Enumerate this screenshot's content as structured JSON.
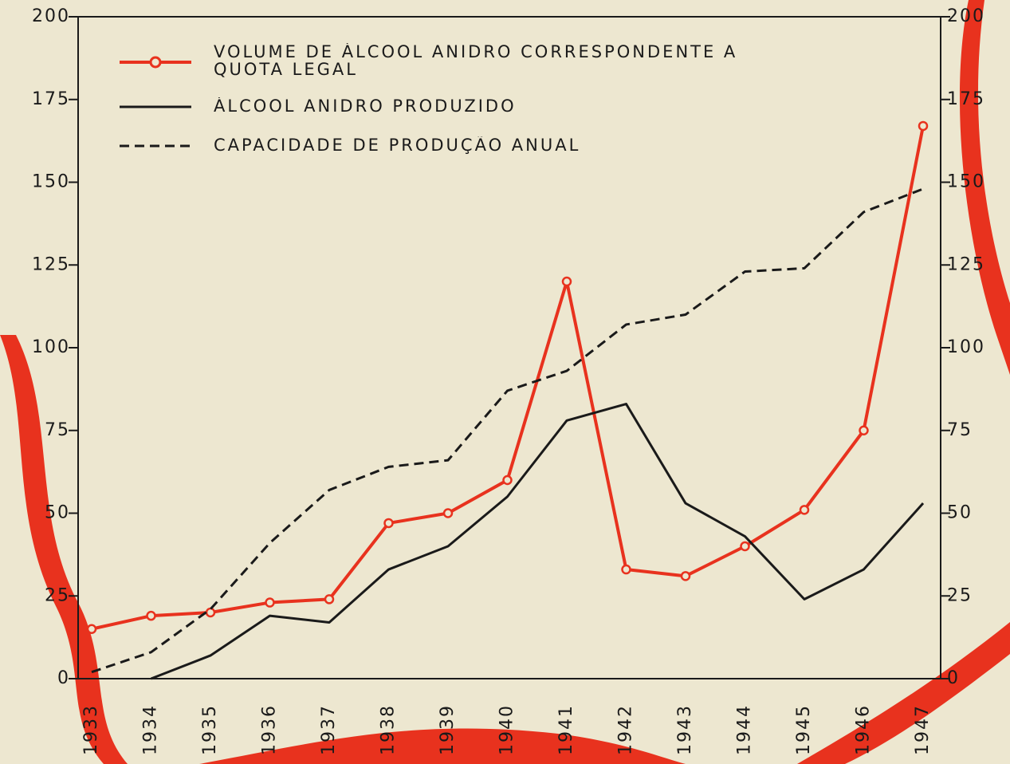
{
  "chart_data": {
    "type": "line",
    "categories": [
      "1933",
      "1934",
      "1935",
      "1936",
      "1937",
      "1938",
      "1939",
      "1940",
      "1941",
      "1942",
      "1943",
      "1944",
      "1945",
      "1946",
      "1947"
    ],
    "series": [
      {
        "name": "VOLUME DE ÁLCOOL ANIDRO CORRESPONDENTE A QUOTA LEGAL",
        "color": "#e8321e",
        "style": "solid-markers",
        "values": [
          15,
          19,
          20,
          23,
          24,
          47,
          50,
          60,
          120,
          33,
          31,
          40,
          51,
          75,
          167
        ]
      },
      {
        "name": "ÁLCOOL ANIDRO PRODUZIDO",
        "color": "#1a1a1a",
        "style": "solid",
        "values": [
          null,
          0,
          7,
          19,
          17,
          33,
          40,
          55,
          78,
          83,
          53,
          43,
          24,
          33,
          53
        ]
      },
      {
        "name": "CAPACIDADE DE PRODUÇÃO ANUAL",
        "color": "#1a1a1a",
        "style": "dashed",
        "values": [
          2,
          8,
          21,
          41,
          57,
          64,
          66,
          87,
          93,
          107,
          110,
          123,
          124,
          141,
          148
        ]
      }
    ],
    "ylim": [
      0,
      200
    ],
    "yticks": [
      0,
      25,
      50,
      75,
      100,
      125,
      150,
      175,
      200
    ],
    "y2lim": [
      0,
      200
    ],
    "y2ticks": [
      0,
      25,
      50,
      75,
      100,
      125,
      150,
      175,
      200
    ]
  }
}
